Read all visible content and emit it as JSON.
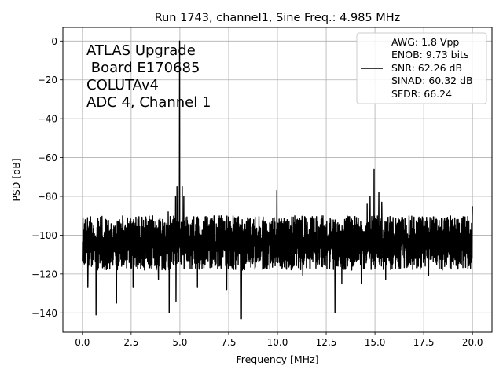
{
  "chart_data": {
    "type": "line",
    "title": "Run 1743, channel1, Sine Freq.: 4.985 MHz",
    "xlabel": "Frequency [MHz]",
    "ylabel": "PSD [dB]",
    "xlim": [
      -1.0,
      21.0
    ],
    "ylim": [
      -150,
      7
    ],
    "xticks": [
      0.0,
      2.5,
      5.0,
      7.5,
      10.0,
      12.5,
      15.0,
      17.5,
      20.0
    ],
    "xtick_labels": [
      "0.0",
      "2.5",
      "5.0",
      "7.5",
      "10.0",
      "12.5",
      "15.0",
      "17.5",
      "20.0"
    ],
    "yticks": [
      0,
      -20,
      -40,
      -60,
      -80,
      -100,
      -120,
      -140
    ],
    "ytick_labels": [
      "0",
      "−20",
      "−40",
      "−60",
      "−80",
      "−100",
      "−120",
      "−140"
    ],
    "grid": true,
    "annotation_lines": [
      "ATLAS Upgrade",
      " Board E170685",
      "COLUTAv4",
      "ADC 4, Channel 1"
    ],
    "legend": {
      "placement": "top-right",
      "lines": [
        "AWG: 1.8 Vpp",
        "ENOB: 9.73 bits",
        "SNR: 62.26 dB",
        "SINAD: 60.32 dB",
        "SFDR: 66.24"
      ]
    },
    "series": [
      {
        "color": "#000000",
        "noise_floor_db": -104,
        "noise_range_db": [
          -118,
          -90
        ],
        "peaks": [
          {
            "x": 4.985,
            "y": 0.0
          },
          {
            "x": 4.78,
            "y": -80
          },
          {
            "x": 4.85,
            "y": -75
          },
          {
            "x": 5.12,
            "y": -75
          },
          {
            "x": 5.2,
            "y": -80
          },
          {
            "x": 9.97,
            "y": -77
          },
          {
            "x": 14.955,
            "y": -66
          },
          {
            "x": 14.6,
            "y": -84
          },
          {
            "x": 14.75,
            "y": -80
          },
          {
            "x": 15.2,
            "y": -78
          },
          {
            "x": 15.35,
            "y": -83
          },
          {
            "x": 4.4,
            "y": -88
          },
          {
            "x": 13.3,
            "y": -90
          },
          {
            "x": 20.0,
            "y": -85
          }
        ],
        "dips": [
          {
            "x": 0.28,
            "y": -127
          },
          {
            "x": 0.7,
            "y": -141
          },
          {
            "x": 1.75,
            "y": -135
          },
          {
            "x": 2.6,
            "y": -127
          },
          {
            "x": 3.9,
            "y": -123
          },
          {
            "x": 4.45,
            "y": -140
          },
          {
            "x": 4.8,
            "y": -134
          },
          {
            "x": 5.9,
            "y": -127
          },
          {
            "x": 7.4,
            "y": -128
          },
          {
            "x": 8.15,
            "y": -143
          },
          {
            "x": 11.3,
            "y": -121
          },
          {
            "x": 12.95,
            "y": -140
          },
          {
            "x": 13.3,
            "y": -125
          },
          {
            "x": 14.3,
            "y": -125
          },
          {
            "x": 15.55,
            "y": -123
          },
          {
            "x": 17.75,
            "y": -121
          },
          {
            "x": 19.9,
            "y": -117
          }
        ]
      }
    ]
  }
}
